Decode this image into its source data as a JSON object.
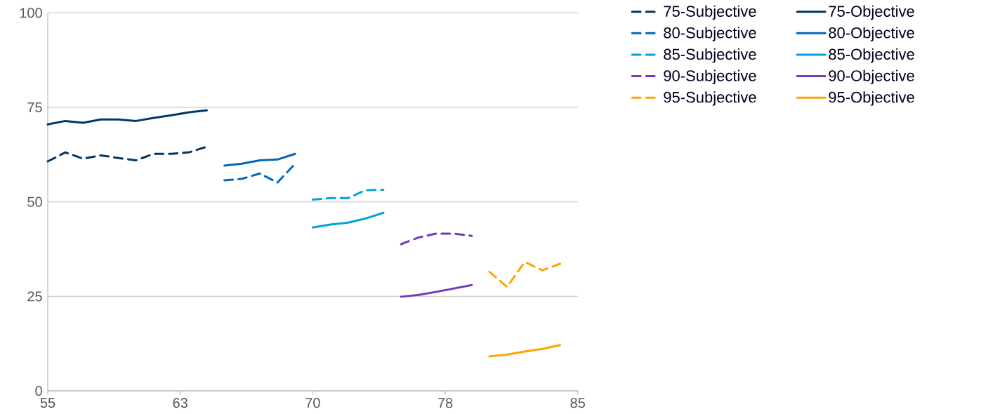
{
  "chart_data": {
    "type": "line",
    "xlim": [
      55,
      85
    ],
    "ylim": [
      0,
      100
    ],
    "xticks": [
      55,
      {
        "value": 62.5,
        "label": "63"
      },
      70,
      {
        "value": 77.5,
        "label": "78"
      },
      85
    ],
    "yticks": [
      0,
      25,
      50,
      75,
      100
    ],
    "grid": "y",
    "legend": "right",
    "series": [
      {
        "name": "75-Subjective",
        "color": "#003865",
        "line_style": "dashed",
        "x": [
          55,
          56,
          57,
          58,
          59,
          60,
          61,
          62,
          63,
          64
        ],
        "values": [
          60.7,
          63.1,
          61.4,
          62.3,
          61.6,
          61.0,
          62.7,
          62.7,
          63.1,
          64.6
        ]
      },
      {
        "name": "75-Objective",
        "color": "#003865",
        "line_style": "solid",
        "x": [
          55,
          56,
          57,
          58,
          59,
          60,
          61,
          62,
          63,
          64
        ],
        "values": [
          70.5,
          71.4,
          70.9,
          71.8,
          71.8,
          71.4,
          72.2,
          72.9,
          73.7,
          74.2
        ]
      },
      {
        "name": "80-Subjective",
        "color": "#0067b9",
        "line_style": "dashed",
        "x": [
          65,
          66,
          67,
          68,
          69
        ],
        "values": [
          55.7,
          56.1,
          57.5,
          55.1,
          60.1
        ]
      },
      {
        "name": "80-Objective",
        "color": "#0067b9",
        "line_style": "solid",
        "x": [
          65,
          66,
          67,
          68,
          69
        ],
        "values": [
          59.6,
          60.1,
          61.0,
          61.2,
          62.7
        ]
      },
      {
        "name": "85-Subjective",
        "color": "#00a3e0",
        "line_style": "dashed",
        "x": [
          70,
          71,
          72,
          73,
          74
        ],
        "values": [
          50.6,
          51.0,
          51.0,
          53.1,
          53.2
        ]
      },
      {
        "name": "85-Objective",
        "color": "#00a3e0",
        "line_style": "solid",
        "x": [
          70,
          71,
          72,
          73,
          74
        ],
        "values": [
          43.2,
          44.0,
          44.5,
          45.6,
          47.1
        ]
      },
      {
        "name": "90-Subjective",
        "color": "#7239c3",
        "line_style": "dashed",
        "x": [
          75,
          76,
          77,
          78,
          79
        ],
        "values": [
          38.8,
          40.6,
          41.6,
          41.6,
          41.0
        ]
      },
      {
        "name": "90-Objective",
        "color": "#7239c3",
        "line_style": "solid",
        "x": [
          75,
          76,
          77,
          78,
          79
        ],
        "values": [
          24.9,
          25.4,
          26.2,
          27.1,
          28.0
        ]
      },
      {
        "name": "95-Subjective",
        "color": "#ffa300",
        "line_style": "dashed",
        "x": [
          80,
          81,
          82,
          83,
          84
        ],
        "values": [
          31.5,
          27.5,
          34.1,
          31.9,
          33.6
        ]
      },
      {
        "name": "95-Objective",
        "color": "#ffa300",
        "line_style": "solid",
        "x": [
          80,
          81,
          82,
          83,
          84
        ],
        "values": [
          9.1,
          9.6,
          10.4,
          11.1,
          12.1
        ]
      }
    ]
  }
}
